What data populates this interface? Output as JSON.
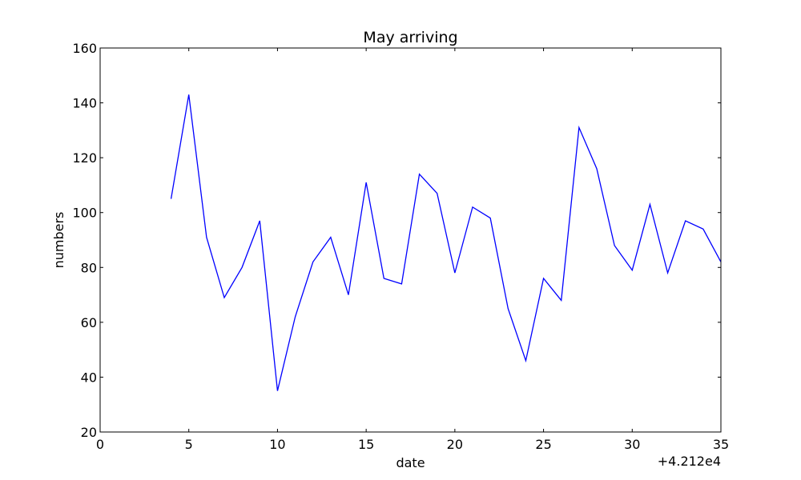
{
  "chart_data": {
    "type": "line",
    "title": "May arriving",
    "xlabel": "date",
    "ylabel": "numbers",
    "x_offset_label": "+4.212e4",
    "xlim": [
      0,
      35
    ],
    "ylim": [
      20,
      160
    ],
    "x_ticks": [
      0,
      5,
      10,
      15,
      20,
      25,
      30,
      35
    ],
    "y_ticks": [
      20,
      40,
      60,
      80,
      100,
      120,
      140,
      160
    ],
    "grid": false,
    "series": [
      {
        "color": "#0000ff",
        "x": [
          4,
          5,
          6,
          7,
          8,
          9,
          10,
          11,
          12,
          13,
          14,
          15,
          16,
          17,
          18,
          19,
          20,
          21,
          22,
          23,
          24,
          25,
          26,
          27,
          28,
          29,
          30,
          31,
          32,
          33,
          34,
          35
        ],
        "values": [
          105,
          143,
          91,
          69,
          80,
          97,
          35,
          62,
          82,
          91,
          70,
          111,
          76,
          74,
          114,
          107,
          78,
          102,
          98,
          65,
          46,
          76,
          68,
          131,
          116,
          88,
          79,
          103,
          78,
          97,
          94,
          82
        ]
      }
    ]
  }
}
